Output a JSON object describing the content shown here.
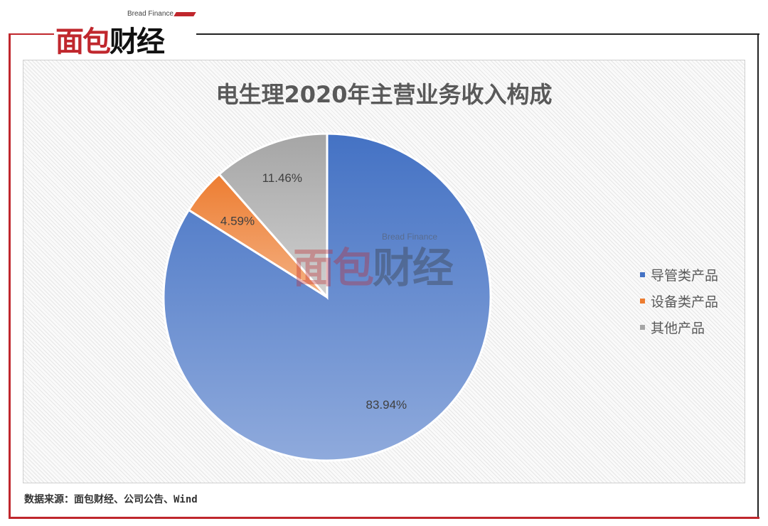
{
  "brand": {
    "name_en": "Bread Finance",
    "name_cn": "面包财经"
  },
  "chart_data": {
    "type": "pie",
    "title": "电生理2020年主营业务收入构成",
    "categories": [
      "导管类产品",
      "设备类产品",
      "其他产品"
    ],
    "values": [
      83.94,
      4.59,
      11.46
    ],
    "data_labels": [
      "83.94%",
      "4.59%",
      "11.46%"
    ],
    "colors": [
      "#4472C4",
      "#ED7D31",
      "#A5A5A5"
    ],
    "legend_position": "right"
  },
  "source": "数据来源：面包财经、公司公告、Wind"
}
